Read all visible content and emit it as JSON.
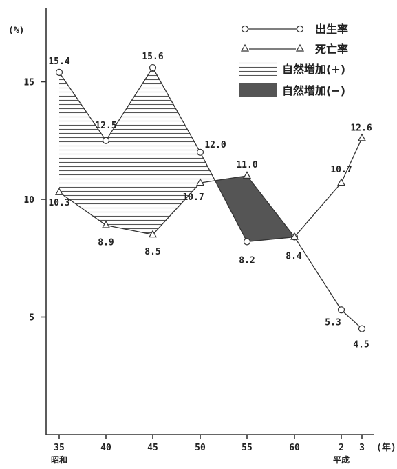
{
  "chart_data": {
    "type": "line",
    "ylabel": "(%)",
    "xunit": "(年)",
    "categories": [
      "35",
      "40",
      "45",
      "50",
      "55",
      "60",
      "2",
      "3"
    ],
    "era_labels": [
      {
        "category": "35",
        "text": "昭和"
      },
      {
        "category": "2",
        "text": "平成"
      }
    ],
    "ylim": [
      0,
      17
    ],
    "yticks": [
      5,
      10,
      15
    ],
    "grid": false,
    "legend_position": "top-right",
    "series": [
      {
        "name": "出生率",
        "marker": "circle",
        "x": [
          "35",
          "40",
          "45",
          "50",
          "55",
          "60",
          "2",
          "3"
        ],
        "values": [
          15.4,
          12.5,
          15.6,
          12.0,
          8.2,
          8.4,
          5.3,
          4.5
        ],
        "labels": [
          "15.4",
          "12.5",
          "15.6",
          "12.0",
          "8.2",
          "8.4",
          "5.3",
          "4.5"
        ]
      },
      {
        "name": "死亡率",
        "marker": "triangle",
        "x": [
          "35",
          "40",
          "45",
          "50",
          "55",
          "60",
          "2",
          "3"
        ],
        "values": [
          10.3,
          8.9,
          8.5,
          10.7,
          11.0,
          8.4,
          10.7,
          12.6
        ],
        "labels": [
          "10.3",
          "8.9",
          "8.5",
          "10.7",
          "11.0",
          "",
          "10.7",
          "12.6"
        ]
      }
    ],
    "areas": [
      {
        "name": "自然増加(+)",
        "fill": "hatched",
        "color": "#555555"
      },
      {
        "name": "自然増加(−)",
        "fill": "solid",
        "color": "#555555"
      }
    ]
  }
}
